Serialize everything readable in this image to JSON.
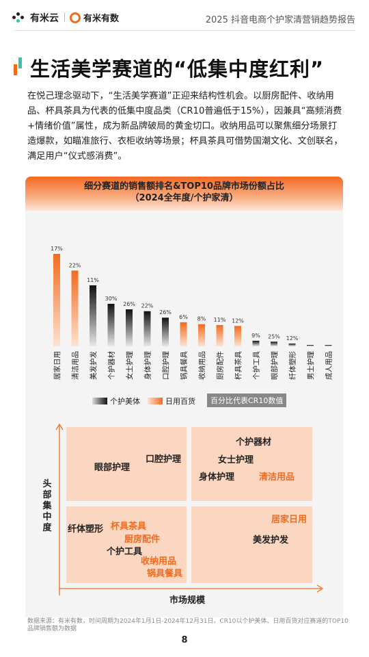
{
  "header": {
    "logo1_text": "有米云",
    "logo2_text": "有米有数",
    "report_title": "2025 抖音电商个护家清营销趋势报告"
  },
  "main_title": "生活美学赛道的“低集中度红利”",
  "intro": "在悦己理念驱动下，“生活美学赛道”正迎来结构性机会。以厨房配件、收纳用品、杯具茶具为代表的低集中度品类（CR10普遍低于15%），因兼具“高频消费+情绪价值”属性，成为新品牌破局的黄金切口。收纳用品可以聚焦细分场景打造爆款，如瞄准旅行、衣柜收纳等场景；杯具茶具可借势国潮文化、文创联名，满足用户“仪式感消费”。",
  "colors": {
    "accent": "#f26b1d",
    "teal": "#3cc0a8",
    "personal_care": "#111111",
    "daily_goods": "#f26b1d",
    "quadrant_fill": "#fbd7c2"
  },
  "chart_data": [
    {
      "type": "bar",
      "title": "细分赛道的销售额排名&TOP10品牌市场份额占比",
      "subtitle": "（2024全年度/个护家清）",
      "categories": [
        "居家日用",
        "清洁用品",
        "美发护发",
        "个护器材",
        "女士护理",
        "身体护理",
        "口腔护理",
        "锅具餐具",
        "收纳用品",
        "厨房配件",
        "杯具茶具",
        "个护工具",
        "眼部护理",
        "纤体塑形",
        "男士护理",
        "成人用品"
      ],
      "groups": [
        "日用百货",
        "日用百货",
        "个护美体",
        "个护美体",
        "个护美体",
        "个护美体",
        "个护美体",
        "日用百货",
        "日用百货",
        "日用百货",
        "日用百货",
        "个护美体",
        "个护美体",
        "个护美体",
        "个护美体",
        "个护美体"
      ],
      "sales_rank_relative": [
        1.0,
        0.82,
        0.66,
        0.46,
        0.4,
        0.38,
        0.31,
        0.26,
        0.24,
        0.23,
        0.22,
        0.06,
        0.05,
        0.03,
        0.01,
        0.005
      ],
      "cr10_labels": [
        "17%",
        "22%",
        "11%",
        "30%",
        "26%",
        "22%",
        "26%",
        "6%",
        "8%",
        "11%",
        "12%",
        "9%",
        "25%",
        "12%",
        "",
        ""
      ],
      "legend": [
        {
          "name": "个护美体",
          "color": "#111111"
        },
        {
          "name": "日用百货",
          "color": "#f26b1d"
        }
      ],
      "legend_note": "百分比代表CR10数值",
      "grid": false
    },
    {
      "type": "scatter",
      "xlabel": "市场规模",
      "ylabel": "头部集中度",
      "quadrants": {
        "top_left": [
          {
            "name": "眼部护理",
            "group": "个护美体"
          },
          {
            "name": "口腔护理",
            "group": "个护美体"
          }
        ],
        "top_right": [
          {
            "name": "个护器材",
            "group": "个护美体"
          },
          {
            "name": "女士护理",
            "group": "个护美体"
          },
          {
            "name": "身体护理",
            "group": "个护美体"
          },
          {
            "name": "清洁用品",
            "group": "日用百货"
          }
        ],
        "bottom_left": [
          {
            "name": "纤体塑形",
            "group": "个护美体"
          },
          {
            "name": "杯具茶具",
            "group": "日用百货"
          },
          {
            "name": "厨房配件",
            "group": "日用百货"
          },
          {
            "name": "个护工具",
            "group": "个护美体"
          },
          {
            "name": "收纳用品",
            "group": "日用百货"
          },
          {
            "name": "锅具餐具",
            "group": "日用百货"
          }
        ],
        "bottom_right": [
          {
            "name": "居家日用",
            "group": "日用百货"
          },
          {
            "name": "美发护发",
            "group": "个护美体"
          }
        ]
      }
    }
  ],
  "source": "数据来源：有米有数，时间周期为2024年1月1日-2024年12月31日。CR10以个护美体、日用百货对应赛道的TOP10品牌销售额为数据",
  "page_number": "8"
}
